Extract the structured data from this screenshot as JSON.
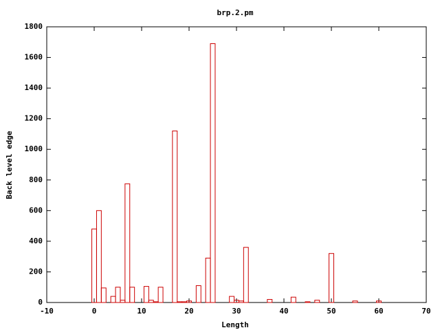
{
  "chart_data": {
    "type": "bar",
    "title": "brp.2.pm",
    "x_label": "Length",
    "y_label": "Back level edge",
    "x": [
      0,
      1,
      2,
      4,
      5,
      6,
      7,
      8,
      11,
      12,
      13,
      14,
      17,
      18,
      19,
      20,
      22,
      24,
      25,
      29,
      30,
      31,
      32,
      37,
      42,
      45,
      47,
      50,
      55,
      60
    ],
    "values": [
      480,
      600,
      95,
      40,
      100,
      15,
      775,
      100,
      105,
      15,
      5,
      100,
      1120,
      5,
      5,
      10,
      110,
      290,
      1690,
      40,
      15,
      10,
      360,
      20,
      35,
      5,
      15,
      320,
      10,
      10
    ],
    "color": "#cc0000",
    "xlim": [
      -10,
      70
    ],
    "xticks": [
      -10,
      0,
      10,
      20,
      30,
      40,
      50,
      60,
      70
    ],
    "ylim": [
      0,
      1800
    ],
    "yticks": [
      0,
      200,
      400,
      600,
      800,
      1000,
      1200,
      1400,
      1600,
      1800
    ]
  }
}
